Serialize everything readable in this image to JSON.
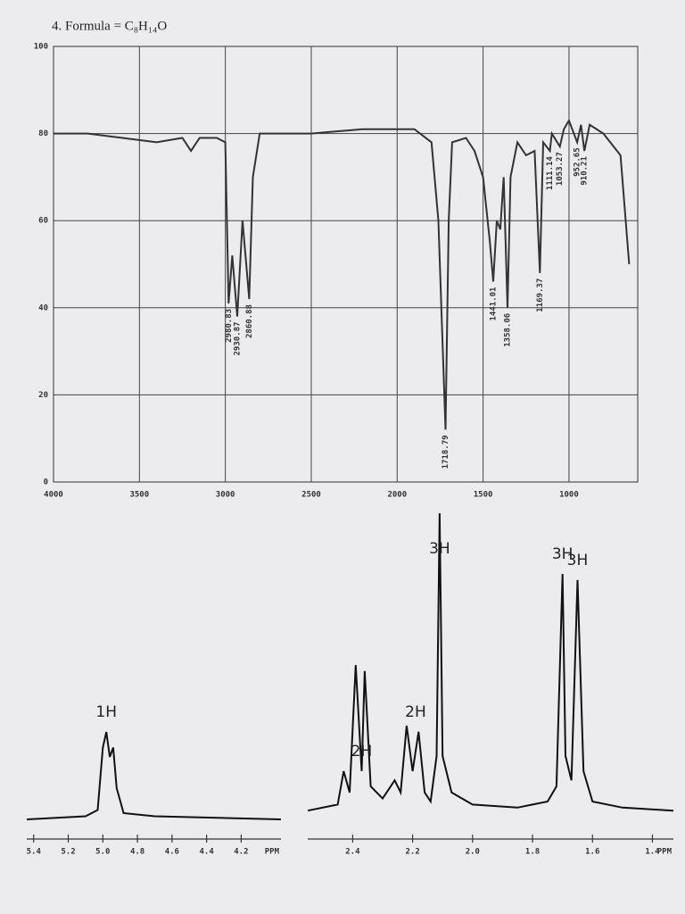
{
  "title": "4. Formula = C₈H₁₄O",
  "chart_data": [
    {
      "type": "line",
      "color": "#333333",
      "grid": true,
      "xlim": [
        4000,
        600
      ],
      "ylim": [
        0,
        100
      ],
      "xticks": [
        4000,
        3500,
        3000,
        2500,
        2000,
        1500,
        1000
      ],
      "yticks": [
        0,
        20,
        40,
        60,
        80,
        100
      ],
      "x": [
        4000,
        3800,
        3600,
        3400,
        3250,
        3200,
        3150,
        3050,
        3000,
        2980.83,
        2960,
        2930.87,
        2900,
        2860.88,
        2840,
        2800,
        2700,
        2500,
        2200,
        2000,
        1900,
        1800,
        1760,
        1718.79,
        1700,
        1680,
        1600,
        1550,
        1500,
        1460,
        1441.01,
        1420,
        1400,
        1380,
        1358.06,
        1340,
        1300,
        1250,
        1200,
        1169.37,
        1150,
        1111.14,
        1100,
        1053.27,
        1030,
        1000,
        952.65,
        930,
        910.21,
        880,
        800,
        700,
        650
      ],
      "values": [
        80,
        80,
        79,
        78,
        79,
        76,
        79,
        79,
        78,
        41,
        52,
        38,
        60,
        42,
        70,
        80,
        80,
        80,
        81,
        81,
        81,
        78,
        60,
        12,
        60,
        78,
        79,
        76,
        70,
        55,
        46,
        60,
        58,
        70,
        40,
        70,
        78,
        75,
        76,
        48,
        78,
        76,
        80,
        77,
        81,
        83,
        78,
        82,
        76,
        82,
        80,
        75,
        50
      ],
      "peaks": [
        {
          "value": 2980.83,
          "label": "2980.83"
        },
        {
          "value": 2930.87,
          "label": "2930.87"
        },
        {
          "value": 2860.88,
          "label": "2860.88"
        },
        {
          "value": 1718.79,
          "label": "1718.79"
        },
        {
          "value": 1441.01,
          "label": "1441.01"
        },
        {
          "value": 1358.06,
          "label": "1358.06"
        },
        {
          "value": 1169.37,
          "label": "1169.37"
        },
        {
          "value": 1111.14,
          "label": "1111.14"
        },
        {
          "value": 1053.27,
          "label": "1053.27"
        },
        {
          "value": 952.65,
          "label": "952.65"
        },
        {
          "value": 910.21,
          "label": "910.21"
        }
      ]
    },
    {
      "type": "line",
      "color": "#111111",
      "grid": false,
      "xlim": [
        5.44,
        3.97
      ],
      "ylim": [
        0,
        100
      ],
      "xticks": [
        5.4,
        5.2,
        {
          "value": 5,
          "label": "5.0"
        },
        4.8,
        4.6,
        4.4,
        4.2
      ],
      "x_unit": "PPM",
      "x": [
        5.44,
        5.1,
        5.03,
        5.0,
        4.98,
        4.96,
        4.94,
        4.92,
        4.88,
        4.7,
        3.97
      ],
      "values": [
        2,
        3,
        5,
        25,
        30,
        22,
        25,
        12,
        4,
        3,
        2
      ],
      "annotations": [
        {
          "x": 4.98,
          "text": "1H"
        }
      ]
    },
    {
      "type": "line",
      "color": "#111111",
      "grid": false,
      "xlim": [
        2.55,
        1.33
      ],
      "ylim": [
        0,
        100
      ],
      "xticks": [
        2.4,
        2.2,
        {
          "value": 2,
          "label": "2.0"
        },
        1.8,
        1.6,
        1.4
      ],
      "x_unit": "PPM",
      "x": [
        2.55,
        2.45,
        2.43,
        2.41,
        2.39,
        2.37,
        2.36,
        2.34,
        2.3,
        2.26,
        2.24,
        2.22,
        2.2,
        2.18,
        2.16,
        2.14,
        2.12,
        2.11,
        2.1,
        2.07,
        2.0,
        1.85,
        1.8,
        1.75,
        1.72,
        1.7,
        1.69,
        1.67,
        1.65,
        1.63,
        1.6,
        1.5,
        1.33
      ],
      "values": [
        2,
        4,
        15,
        8,
        50,
        15,
        48,
        10,
        6,
        12,
        8,
        30,
        15,
        28,
        8,
        5,
        20,
        100,
        20,
        8,
        4,
        3,
        4,
        5,
        10,
        80,
        20,
        12,
        78,
        15,
        5,
        3,
        2
      ],
      "annotations": [
        {
          "x": 2.37,
          "text": "2H"
        },
        {
          "x": 2.19,
          "text": "2H"
        },
        {
          "x": 2.11,
          "text": "3H"
        },
        {
          "x": 1.7,
          "text": "3H"
        },
        {
          "x": 1.65,
          "text": "3H"
        }
      ]
    }
  ]
}
